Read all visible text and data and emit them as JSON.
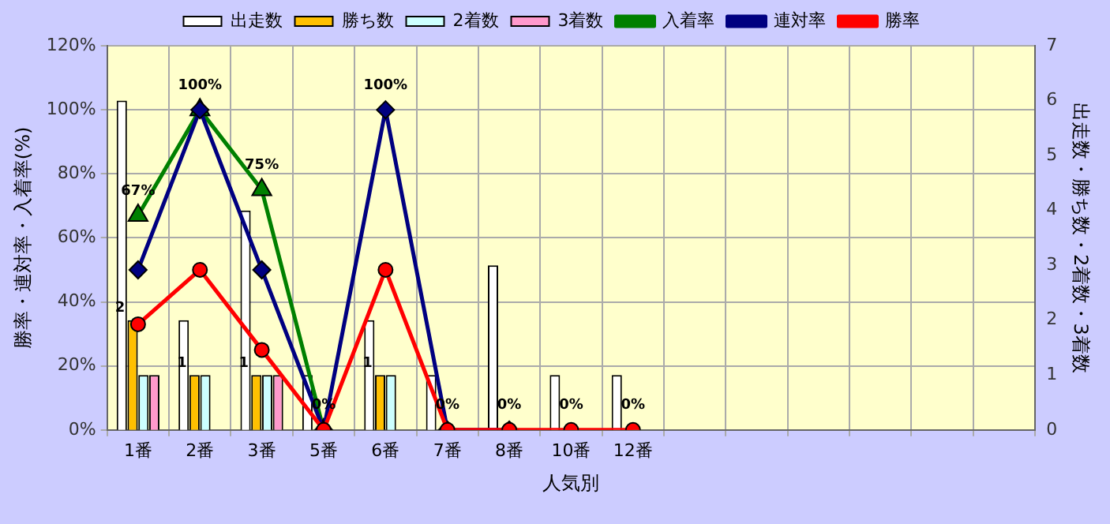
{
  "chart_data": {
    "type": "bar",
    "categories": [
      "1番",
      "2番",
      "3番",
      "5番",
      "6番",
      "7番",
      "8番",
      "10番",
      "12番",
      null,
      null,
      null,
      null,
      null,
      null
    ],
    "xlabel": "人気別",
    "ylabel": "勝率・連対率・入着率(%)",
    "y2label": "出走数・勝ち数・2着数・3着数",
    "series": [
      {
        "name": "出走数",
        "axis": "y2",
        "color": "#ffffff",
        "values": [
          6,
          2,
          4,
          1,
          2,
          1,
          3,
          1,
          1,
          null,
          null,
          null,
          null,
          null,
          null
        ]
      },
      {
        "name": "勝ち数",
        "axis": "y2",
        "color": "#ffc000",
        "values": [
          2,
          1,
          1,
          0,
          1,
          0,
          0,
          0,
          0,
          null,
          null,
          null,
          null,
          null,
          null
        ],
        "value_labels": [
          "2",
          "1",
          "1",
          null,
          "1",
          null,
          null,
          null,
          null,
          null,
          null,
          null,
          null,
          null,
          null
        ]
      },
      {
        "name": "2着数",
        "axis": "y2",
        "color": "#ccffff",
        "values": [
          1,
          1,
          1,
          0,
          1,
          0,
          0,
          0,
          0,
          null,
          null,
          null,
          null,
          null,
          null
        ]
      },
      {
        "name": "3着数",
        "axis": "y2",
        "color": "#ff99cc",
        "values": [
          1,
          0,
          1,
          0,
          0,
          0,
          0,
          0,
          0,
          null,
          null,
          null,
          null,
          null,
          null
        ]
      },
      {
        "name": "入着率",
        "type": "line",
        "marker": "triangle",
        "color": "#008000",
        "values": [
          67,
          100,
          75,
          0,
          null,
          null,
          null,
          null,
          null,
          null,
          null,
          null,
          null,
          null,
          null
        ],
        "value_labels": [
          "67%",
          "100%",
          "75%",
          "0%",
          null,
          null,
          null,
          null,
          null,
          null,
          null,
          null,
          null,
          null,
          null
        ]
      },
      {
        "name": "連対率",
        "type": "line",
        "marker": "diamond",
        "color": "#000080",
        "values": [
          50,
          100,
          50,
          0,
          100,
          0,
          0,
          null,
          null,
          null,
          null,
          null,
          null,
          null,
          null
        ],
        "value_labels": [
          null,
          null,
          null,
          null,
          "100%",
          null,
          null,
          null,
          null,
          null,
          null,
          null,
          null,
          null,
          null
        ]
      },
      {
        "name": "勝率",
        "type": "line",
        "marker": "circle",
        "color": "#ff0000",
        "values": [
          33,
          50,
          25,
          0,
          50,
          0,
          0,
          0,
          0,
          null,
          null,
          null,
          null,
          null,
          null
        ],
        "value_labels": [
          null,
          null,
          null,
          null,
          null,
          "0%",
          "0%",
          "0%",
          "0%",
          null,
          null,
          null,
          null,
          null,
          null
        ]
      }
    ],
    "ylim": [
      0,
      120
    ],
    "yticks": [
      {
        "value": 0,
        "label": "0%"
      },
      {
        "value": 20,
        "label": "20%"
      },
      {
        "value": 40,
        "label": "40%"
      },
      {
        "value": 60,
        "label": "60%"
      },
      {
        "value": 80,
        "label": "80%"
      },
      {
        "value": 100,
        "label": "100%"
      },
      {
        "value": 120,
        "label": "120%"
      }
    ],
    "y2lim": [
      0,
      7
    ],
    "y2ticks": [
      0,
      1,
      2,
      3,
      4,
      5,
      6,
      7
    ],
    "grid": true,
    "legend": "top"
  }
}
